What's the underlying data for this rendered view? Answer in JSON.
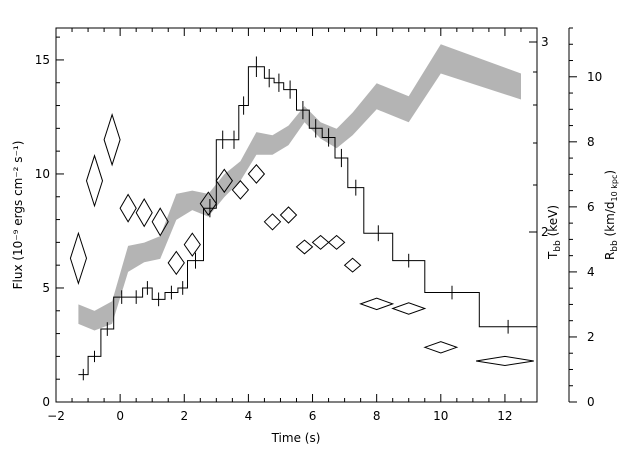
{
  "chart_data": {
    "type": "scatter",
    "xlabel": "Time (s)",
    "xlim": [
      -2,
      13
    ],
    "x_ticks": [
      "−2",
      "0",
      "2",
      "4",
      "6",
      "8",
      "10",
      "12"
    ],
    "left_axis": {
      "label": "Flux (10⁻⁹ ergs cm⁻² s⁻¹)",
      "ylim": [
        0,
        16.4
      ],
      "ticks": [
        "0",
        "5",
        "10",
        "15"
      ]
    },
    "middle_axis": {
      "label": "T",
      "label_sub": "bb",
      "label_unit": " (keV)",
      "ticks": [
        "2",
        "3"
      ]
    },
    "right_axis": {
      "label": "R",
      "label_sub": "bb",
      "label_unit_prefix": " (km/d",
      "label_unit_sub": "10 kpc",
      "label_unit_suffix": ")",
      "ylim": [
        0,
        11.5
      ],
      "ticks": [
        "0",
        "2",
        "4",
        "6",
        "8",
        "10"
      ]
    },
    "series": [
      {
        "kind": "flux-histogram",
        "color": "#000000",
        "points": [
          {
            "x0": -1.3,
            "x1": -1.0,
            "y": 1.2,
            "err": 0.25
          },
          {
            "x0": -1.0,
            "x1": -0.6,
            "y": 2.0,
            "err": 0.25
          },
          {
            "x0": -0.6,
            "x1": -0.2,
            "y": 3.2,
            "err": 0.3
          },
          {
            "x0": -0.2,
            "x1": 0.3,
            "y": 4.6,
            "err": 0.3
          },
          {
            "x0": 0.3,
            "x1": 0.7,
            "y": 4.6,
            "err": 0.3
          },
          {
            "x0": 0.7,
            "x1": 1.0,
            "y": 5.0,
            "err": 0.3
          },
          {
            "x0": 1.0,
            "x1": 1.4,
            "y": 4.5,
            "err": 0.3
          },
          {
            "x0": 1.4,
            "x1": 1.8,
            "y": 4.8,
            "err": 0.3
          },
          {
            "x0": 1.8,
            "x1": 2.1,
            "y": 5.0,
            "err": 0.3
          },
          {
            "x0": 2.1,
            "x1": 2.6,
            "y": 6.2,
            "err": 0.35
          },
          {
            "x0": 2.6,
            "x1": 3.0,
            "y": 8.5,
            "err": 0.4
          },
          {
            "x0": 3.0,
            "x1": 3.4,
            "y": 11.5,
            "err": 0.4
          },
          {
            "x0": 3.4,
            "x1": 3.7,
            "y": 11.5,
            "err": 0.4
          },
          {
            "x0": 3.7,
            "x1": 4.0,
            "y": 13.0,
            "err": 0.4
          },
          {
            "x0": 4.0,
            "x1": 4.5,
            "y": 14.7,
            "err": 0.45
          },
          {
            "x0": 4.5,
            "x1": 4.8,
            "y": 14.2,
            "err": 0.4
          },
          {
            "x0": 4.8,
            "x1": 5.1,
            "y": 14.0,
            "err": 0.4
          },
          {
            "x0": 5.1,
            "x1": 5.5,
            "y": 13.7,
            "err": 0.4
          },
          {
            "x0": 5.5,
            "x1": 5.9,
            "y": 12.8,
            "err": 0.4
          },
          {
            "x0": 5.9,
            "x1": 6.3,
            "y": 12.0,
            "err": 0.4
          },
          {
            "x0": 6.3,
            "x1": 6.7,
            "y": 11.6,
            "err": 0.4
          },
          {
            "x0": 6.7,
            "x1": 7.1,
            "y": 10.7,
            "err": 0.4
          },
          {
            "x0": 7.1,
            "x1": 7.6,
            "y": 9.4,
            "err": 0.35
          },
          {
            "x0": 7.6,
            "x1": 8.5,
            "y": 7.4,
            "err": 0.35
          },
          {
            "x0": 8.5,
            "x1": 9.5,
            "y": 6.2,
            "err": 0.3
          },
          {
            "x0": 9.5,
            "x1": 11.2,
            "y": 4.8,
            "err": 0.3
          },
          {
            "x0": 11.2,
            "x1": 13.0,
            "y": 3.3,
            "err": 0.3
          }
        ]
      },
      {
        "kind": "temperature-diamonds",
        "axis": "left",
        "color": "#000000",
        "points": [
          {
            "x": -1.3,
            "y": 6.3,
            "xerr": 0.25,
            "yerr": 1.1
          },
          {
            "x": -0.8,
            "y": 9.7,
            "xerr": 0.25,
            "yerr": 1.1
          },
          {
            "x": -0.25,
            "y": 11.5,
            "xerr": 0.25,
            "yerr": 1.1
          },
          {
            "x": 0.25,
            "y": 8.5,
            "xerr": 0.25,
            "yerr": 0.6
          },
          {
            "x": 0.75,
            "y": 8.3,
            "xerr": 0.25,
            "yerr": 0.6
          },
          {
            "x": 1.25,
            "y": 7.9,
            "xerr": 0.25,
            "yerr": 0.6
          },
          {
            "x": 1.75,
            "y": 6.1,
            "xerr": 0.25,
            "yerr": 0.5
          },
          {
            "x": 2.25,
            "y": 6.9,
            "xerr": 0.25,
            "yerr": 0.5
          },
          {
            "x": 2.75,
            "y": 8.7,
            "xerr": 0.25,
            "yerr": 0.5
          },
          {
            "x": 3.25,
            "y": 9.7,
            "xerr": 0.25,
            "yerr": 0.5
          },
          {
            "x": 3.75,
            "y": 9.3,
            "xerr": 0.25,
            "yerr": 0.4
          },
          {
            "x": 4.25,
            "y": 10.0,
            "xerr": 0.25,
            "yerr": 0.4
          },
          {
            "x": 4.75,
            "y": 7.9,
            "xerr": 0.25,
            "yerr": 0.35
          },
          {
            "x": 5.25,
            "y": 8.2,
            "xerr": 0.25,
            "yerr": 0.35
          },
          {
            "x": 5.75,
            "y": 6.8,
            "xerr": 0.25,
            "yerr": 0.3
          },
          {
            "x": 6.25,
            "y": 7.0,
            "xerr": 0.25,
            "yerr": 0.3
          },
          {
            "x": 6.75,
            "y": 7.0,
            "xerr": 0.25,
            "yerr": 0.3
          },
          {
            "x": 7.25,
            "y": 6.0,
            "xerr": 0.25,
            "yerr": 0.3
          },
          {
            "x": 8.0,
            "y": 4.3,
            "xerr": 0.5,
            "yerr": 0.25
          },
          {
            "x": 9.0,
            "y": 4.1,
            "xerr": 0.5,
            "yerr": 0.25
          },
          {
            "x": 10.0,
            "y": 2.4,
            "xerr": 0.5,
            "yerr": 0.25
          },
          {
            "x": 12.0,
            "y": 1.8,
            "xerr": 0.9,
            "yerr": 0.2
          }
        ]
      },
      {
        "kind": "radius-band",
        "axis": "right",
        "color": "#b4b4b4",
        "points": [
          {
            "x": -1.3,
            "lo": 2.4,
            "hi": 3.0
          },
          {
            "x": -0.8,
            "lo": 2.2,
            "hi": 2.8
          },
          {
            "x": -0.25,
            "lo": 2.4,
            "hi": 3.1
          },
          {
            "x": 0.25,
            "lo": 4.0,
            "hi": 4.8
          },
          {
            "x": 0.75,
            "lo": 4.3,
            "hi": 4.9
          },
          {
            "x": 1.25,
            "lo": 4.4,
            "hi": 5.1
          },
          {
            "x": 1.75,
            "lo": 5.6,
            "hi": 6.4
          },
          {
            "x": 2.25,
            "lo": 5.9,
            "hi": 6.5
          },
          {
            "x": 2.75,
            "lo": 5.7,
            "hi": 6.4
          },
          {
            "x": 3.25,
            "lo": 6.3,
            "hi": 7.0
          },
          {
            "x": 3.75,
            "lo": 6.8,
            "hi": 7.4
          },
          {
            "x": 4.25,
            "lo": 7.6,
            "hi": 8.3
          },
          {
            "x": 4.75,
            "lo": 7.6,
            "hi": 8.2
          },
          {
            "x": 5.25,
            "lo": 7.9,
            "hi": 8.5
          },
          {
            "x": 5.75,
            "lo": 8.6,
            "hi": 9.1
          },
          {
            "x": 6.25,
            "lo": 8.1,
            "hi": 8.6
          },
          {
            "x": 6.75,
            "lo": 7.8,
            "hi": 8.4
          },
          {
            "x": 7.25,
            "lo": 8.2,
            "hi": 8.9
          },
          {
            "x": 8.0,
            "lo": 9.0,
            "hi": 9.8
          },
          {
            "x": 9.0,
            "lo": 8.6,
            "hi": 9.4
          },
          {
            "x": 10.0,
            "lo": 10.1,
            "hi": 11.0
          },
          {
            "x": 12.5,
            "lo": 9.3,
            "hi": 10.1
          }
        ]
      }
    ]
  }
}
